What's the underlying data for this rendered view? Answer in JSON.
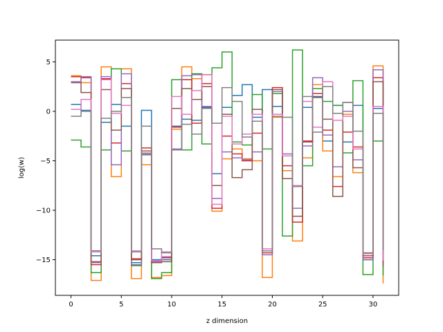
{
  "chart_data": {
    "type": "line",
    "drawstyle": "steps-post",
    "xlabel": "z dimension",
    "ylabel": "log(w)",
    "xlim": [
      -1.55,
      32.55
    ],
    "ylim": [
      -18.6,
      7.2
    ],
    "xticks": [
      0,
      5,
      10,
      15,
      20,
      25,
      30
    ],
    "yticks": [
      -15,
      -10,
      -5,
      0,
      5
    ],
    "grid": false,
    "x": [
      0,
      1,
      2,
      3,
      4,
      5,
      6,
      7,
      8,
      9,
      10,
      11,
      12,
      13,
      14,
      15,
      16,
      17,
      18,
      19,
      20,
      21,
      22,
      23,
      24,
      25,
      26,
      27,
      28,
      29,
      30,
      31
    ],
    "series": [
      {
        "color": "#1f77b4",
        "values": [
          0.7,
          0.1,
          -14.6,
          -1.1,
          0.7,
          -1.5,
          -15.3,
          0.1,
          -15.0,
          -15.0,
          -1.5,
          -0.8,
          -0.9,
          0.4,
          -6.3,
          0.4,
          1.6,
          2.7,
          -0.6,
          2.2,
          0.5,
          -6.0,
          -7.5,
          0.4,
          1.5,
          -3.0,
          0.6,
          -3.1,
          0.6,
          -15.0,
          0.3,
          -15.4
        ]
      },
      {
        "color": "#ff7f0e",
        "values": [
          3.6,
          2.9,
          -17.1,
          4.5,
          -6.6,
          4.3,
          -16.9,
          -5.4,
          -16.8,
          -16.6,
          -1.8,
          4.5,
          3.3,
          3.7,
          -10.1,
          -4.8,
          -3.8,
          -4.8,
          -5.0,
          -16.8,
          -0.6,
          -6.0,
          -13.1,
          -4.7,
          2.7,
          -4.0,
          -6.6,
          -0.3,
          -6.2,
          -14.4,
          4.6,
          -17.4
        ]
      },
      {
        "color": "#2ca02c",
        "values": [
          -2.9,
          -3.6,
          -16.3,
          -3.9,
          4.3,
          -4.0,
          -15.6,
          -4.3,
          -16.9,
          -16.3,
          3.2,
          -3.9,
          3.8,
          -3.3,
          4.4,
          6.0,
          -3.1,
          -3.4,
          1.7,
          -3.8,
          1.8,
          -12.6,
          6.2,
          -5.5,
          2.3,
          1.0,
          0.6,
          -4.2,
          3.1,
          -16.5,
          -3.0,
          -16.6
        ]
      },
      {
        "color": "#d62728",
        "values": [
          3.5,
          3.4,
          -15.5,
          3.3,
          -3.2,
          2.8,
          -14.9,
          -3.7,
          -15.1,
          -14.8,
          -1.6,
          3.2,
          -1.2,
          2.8,
          -9.8,
          -2.5,
          -4.3,
          -5.0,
          -2.2,
          -14.3,
          2.4,
          -5.5,
          -11.2,
          -3.0,
          1.8,
          -1.9,
          -7.6,
          -2.1,
          -3.6,
          -14.8,
          3.4,
          -15.2
        ]
      },
      {
        "color": "#9467bd",
        "values": [
          3.0,
          3.5,
          -15.3,
          3.5,
          -5.4,
          3.8,
          -15.5,
          -4.4,
          -15.2,
          -14.7,
          -3.8,
          3.6,
          3.7,
          0.5,
          -8.8,
          -4.1,
          -4.7,
          -4.9,
          -4.1,
          -14.5,
          2.0,
          -4.3,
          -9.8,
          -3.5,
          3.4,
          -2.4,
          -5.6,
          0.0,
          -4.9,
          -15.0,
          4.2,
          -15.4
        ]
      },
      {
        "color": "#8c564b",
        "values": [
          2.9,
          1.9,
          -15.2,
          2.2,
          -1.9,
          2.3,
          -15.0,
          -4.0,
          -15.3,
          -15.2,
          0.3,
          2.3,
          1.2,
          2.5,
          -7.5,
          -0.3,
          -6.7,
          -5.9,
          0.2,
          -13.9,
          2.2,
          -6.8,
          -10.6,
          -3.1,
          1.4,
          -0.8,
          -8.6,
          0.9,
          -5.7,
          -14.6,
          3.0,
          -15.7
        ]
      },
      {
        "color": "#e377c2",
        "values": [
          0.2,
          1.2,
          -14.2,
          3.2,
          -0.2,
          0.6,
          -14.1,
          -4.2,
          -15.1,
          -14.2,
          1.5,
          -0.3,
          2.1,
          3.7,
          -9.4,
          -0.5,
          -3.3,
          -2.3,
          -0.3,
          -13.9,
          -0.3,
          -4.5,
          -7.5,
          1.0,
          -1.6,
          3.0,
          -0.9,
          -0.5,
          -3.8,
          -14.4,
          0.5,
          -15.1
        ]
      },
      {
        "color": "#7f7f7f",
        "values": [
          -0.5,
          0.0,
          -14.1,
          -0.7,
          0.0,
          1.4,
          -14.2,
          -1.5,
          -13.9,
          -14.3,
          -3.9,
          -1.3,
          -2.3,
          0.3,
          -1.2,
          2.4,
          1.0,
          -2.6,
          -1.0,
          -14.1,
          -0.5,
          -0.6,
          -7.6,
          1.5,
          -2.1,
          2.5,
          -0.2,
          0.9,
          -2.0,
          -14.3,
          -0.2,
          -14.0
        ]
      }
    ]
  }
}
